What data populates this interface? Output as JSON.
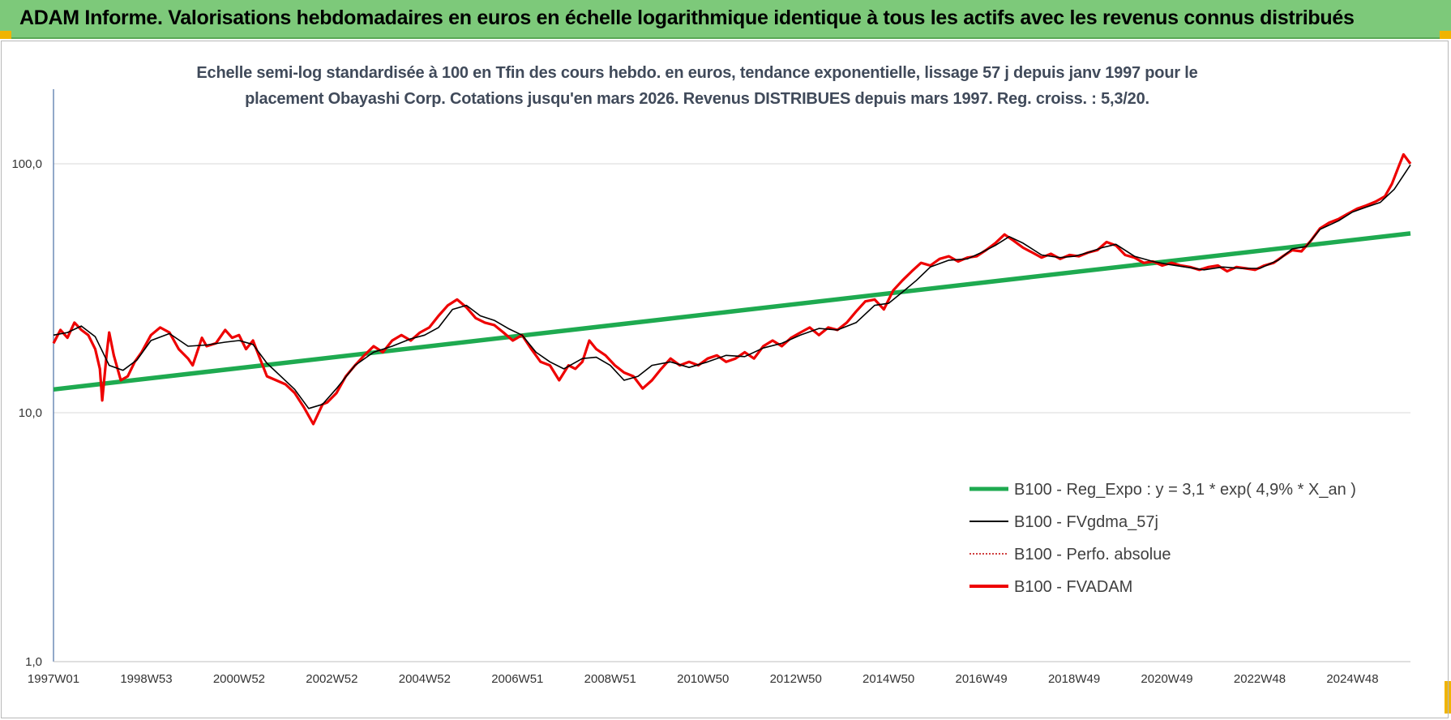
{
  "header": {
    "title": "ADAM Informe. Valorisations hebdomadaires en euros en échelle logarithmique identique à tous les actifs avec les revenus connus distribués"
  },
  "subtitle": {
    "line1": "Echelle semi-log standardisée à 100 en Tfin des cours hebdo. en euros, tendance exponentielle, lissage 57 j depuis janv 1997 pour le",
    "line2": "placement Obayashi Corp. Cotations jusqu'en mars 2026. Revenus DISTRIBUES depuis mars 1997. Reg. croiss. : 5,3/20."
  },
  "colors": {
    "header_bg": "#7dc97a",
    "reg": "#1eaa50",
    "smooth": "#000000",
    "perfo": "#c00000",
    "fvadam": "#ee0000",
    "grid": "#d9d9d9"
  },
  "chart_data": {
    "type": "line",
    "yscale": "log",
    "ylim": [
      1,
      200
    ],
    "y_ticks": [
      {
        "value": 100,
        "label": "100,0"
      },
      {
        "value": 10,
        "label": "10,0"
      },
      {
        "value": 1,
        "label": "1,0"
      }
    ],
    "xlim": [
      1997.0,
      2026.25
    ],
    "x_ticks": [
      {
        "x": 1997.0,
        "label": "1997W01"
      },
      {
        "x": 1999.0,
        "label": "1998W53"
      },
      {
        "x": 2001.0,
        "label": "2000W52"
      },
      {
        "x": 2003.0,
        "label": "2002W52"
      },
      {
        "x": 2005.0,
        "label": "2004W52"
      },
      {
        "x": 2007.0,
        "label": "2006W51"
      },
      {
        "x": 2009.0,
        "label": "2008W51"
      },
      {
        "x": 2011.0,
        "label": "2010W50"
      },
      {
        "x": 2013.0,
        "label": "2012W50"
      },
      {
        "x": 2015.0,
        "label": "2014W50"
      },
      {
        "x": 2017.0,
        "label": "2016W49"
      },
      {
        "x": 2019.0,
        "label": "2018W49"
      },
      {
        "x": 2021.0,
        "label": "2020W49"
      },
      {
        "x": 2023.0,
        "label": "2022W48"
      },
      {
        "x": 2025.0,
        "label": "2024W48"
      }
    ],
    "legend_position": "bottom-right",
    "grid": true,
    "series": [
      {
        "name": "B100 - Reg_Expo : y = 3,1 * exp( 4,9% *  X_an )",
        "x": [
          1997.0,
          2026.25
        ],
        "y": [
          12.4,
          52.5
        ]
      },
      {
        "name": "B100 - FVgdma_57j",
        "x": [
          1997.0,
          1997.3,
          1997.6,
          1997.9,
          1998.2,
          1998.5,
          1998.8,
          1999.1,
          1999.5,
          1999.9,
          2000.3,
          2000.7,
          2001.0,
          2001.3,
          2001.6,
          2001.9,
          2002.2,
          2002.5,
          2002.8,
          2003.1,
          2003.5,
          2003.9,
          2004.3,
          2004.7,
          2005.0,
          2005.3,
          2005.6,
          2005.9,
          2006.2,
          2006.5,
          2006.8,
          2007.1,
          2007.4,
          2007.7,
          2008.0,
          2008.4,
          2008.7,
          2009.0,
          2009.3,
          2009.6,
          2009.9,
          2010.3,
          2010.7,
          2011.1,
          2011.5,
          2011.9,
          2012.3,
          2012.7,
          2013.1,
          2013.5,
          2013.9,
          2014.3,
          2014.7,
          2015.0,
          2015.3,
          2015.6,
          2015.9,
          2016.3,
          2016.7,
          2017.0,
          2017.3,
          2017.6,
          2017.9,
          2018.3,
          2018.7,
          2019.0,
          2019.3,
          2019.6,
          2019.9,
          2020.3,
          2020.7,
          2021.0,
          2021.4,
          2021.8,
          2022.2,
          2022.6,
          2023.0,
          2023.4,
          2023.7,
          2024.0,
          2024.3,
          2024.7,
          2025.0,
          2025.3,
          2025.6,
          2025.9,
          2026.25
        ],
        "y": [
          20.5,
          21.0,
          22.3,
          20.2,
          15.5,
          14.8,
          16.3,
          19.5,
          20.8,
          18.5,
          18.7,
          19.2,
          19.5,
          18.8,
          15.8,
          14.0,
          12.4,
          10.4,
          10.8,
          12.5,
          15.5,
          17.5,
          18.5,
          19.8,
          20.5,
          22.0,
          26.0,
          27.0,
          24.5,
          23.5,
          21.8,
          20.5,
          17.5,
          16.0,
          15.0,
          16.5,
          16.7,
          15.5,
          13.5,
          14.0,
          15.5,
          16.0,
          15.2,
          16.0,
          17.0,
          16.8,
          18.2,
          19.0,
          20.5,
          21.8,
          21.5,
          23.0,
          27.0,
          27.5,
          30.5,
          34.0,
          38.5,
          41.0,
          41.5,
          44.0,
          47.0,
          51.0,
          48.0,
          43.0,
          42.0,
          42.5,
          44.0,
          46.0,
          47.5,
          42.5,
          40.5,
          39.5,
          38.5,
          37.5,
          38.5,
          38.0,
          38.0,
          41.0,
          45.5,
          46.5,
          54.5,
          59.0,
          64.0,
          67.0,
          70.0,
          79.0,
          99.0
        ]
      },
      {
        "name": "B100 - Perfo. absolue",
        "x": [],
        "y": []
      },
      {
        "name": "B100 - FVADAM",
        "x": [
          1997.0,
          1997.15,
          1997.3,
          1997.45,
          1997.6,
          1997.75,
          1997.9,
          1998.0,
          1998.05,
          1998.15,
          1998.2,
          1998.3,
          1998.45,
          1998.6,
          1998.75,
          1998.9,
          1999.1,
          1999.3,
          1999.5,
          1999.7,
          1999.9,
          2000.0,
          2000.2,
          2000.3,
          2000.5,
          2000.7,
          2000.85,
          2001.0,
          2001.15,
          2001.3,
          2001.45,
          2001.6,
          2001.8,
          2002.0,
          2002.2,
          2002.4,
          2002.6,
          2002.8,
          2002.9,
          2003.1,
          2003.3,
          2003.5,
          2003.7,
          2003.9,
          2004.1,
          2004.3,
          2004.5,
          2004.7,
          2004.9,
          2005.1,
          2005.3,
          2005.5,
          2005.7,
          2005.9,
          2006.1,
          2006.3,
          2006.5,
          2006.7,
          2006.9,
          2007.1,
          2007.3,
          2007.5,
          2007.7,
          2007.9,
          2008.1,
          2008.25,
          2008.4,
          2008.55,
          2008.7,
          2008.9,
          2009.1,
          2009.3,
          2009.5,
          2009.7,
          2009.9,
          2010.1,
          2010.3,
          2010.5,
          2010.7,
          2010.9,
          2011.1,
          2011.3,
          2011.5,
          2011.7,
          2011.9,
          2012.1,
          2012.3,
          2012.5,
          2012.7,
          2012.9,
          2013.1,
          2013.3,
          2013.5,
          2013.7,
          2013.9,
          2014.1,
          2014.3,
          2014.5,
          2014.7,
          2014.9,
          2015.1,
          2015.3,
          2015.5,
          2015.7,
          2015.9,
          2016.1,
          2016.3,
          2016.5,
          2016.7,
          2016.9,
          2017.1,
          2017.3,
          2017.5,
          2017.7,
          2017.9,
          2018.1,
          2018.3,
          2018.5,
          2018.7,
          2018.9,
          2019.1,
          2019.3,
          2019.5,
          2019.7,
          2019.9,
          2020.1,
          2020.3,
          2020.5,
          2020.7,
          2020.9,
          2021.1,
          2021.3,
          2021.5,
          2021.7,
          2021.9,
          2022.1,
          2022.3,
          2022.5,
          2022.7,
          2022.9,
          2023.1,
          2023.3,
          2023.5,
          2023.7,
          2023.9,
          2024.1,
          2024.3,
          2024.5,
          2024.7,
          2024.9,
          2025.1,
          2025.3,
          2025.5,
          2025.7,
          2025.85,
          2026.0,
          2026.1,
          2026.25
        ],
        "y": [
          19.0,
          21.5,
          20.0,
          23.0,
          21.5,
          20.5,
          18.0,
          15.0,
          11.2,
          17.5,
          21.0,
          17.0,
          13.5,
          14.0,
          16.0,
          17.5,
          20.5,
          22.0,
          21.0,
          18.0,
          16.5,
          15.5,
          20.0,
          18.5,
          19.0,
          21.5,
          20.0,
          20.5,
          18.0,
          19.5,
          16.5,
          14.0,
          13.5,
          13.0,
          12.0,
          10.5,
          9.0,
          10.8,
          11.0,
          12.0,
          14.0,
          15.5,
          17.0,
          18.5,
          17.5,
          19.5,
          20.5,
          19.5,
          21.0,
          22.0,
          24.5,
          27.0,
          28.5,
          26.5,
          24.0,
          23.0,
          22.5,
          21.0,
          19.5,
          20.5,
          18.0,
          16.0,
          15.5,
          13.5,
          15.5,
          15.0,
          16.0,
          19.5,
          18.0,
          17.0,
          15.5,
          14.5,
          14.0,
          12.5,
          13.5,
          15.0,
          16.5,
          15.5,
          16.0,
          15.5,
          16.5,
          17.0,
          16.0,
          16.5,
          17.5,
          16.5,
          18.5,
          19.5,
          18.5,
          20.0,
          21.0,
          22.0,
          20.5,
          22.0,
          21.5,
          23.0,
          25.5,
          28.0,
          28.5,
          26.0,
          31.0,
          34.0,
          37.0,
          40.0,
          39.0,
          41.5,
          42.5,
          40.5,
          42.0,
          42.5,
          45.0,
          48.0,
          52.0,
          49.0,
          46.0,
          44.0,
          42.0,
          43.5,
          41.5,
          43.0,
          42.5,
          44.0,
          45.0,
          48.5,
          47.0,
          43.0,
          42.0,
          40.0,
          40.5,
          39.0,
          40.0,
          39.0,
          38.5,
          37.5,
          38.5,
          39.0,
          37.0,
          38.5,
          38.0,
          37.5,
          39.0,
          40.0,
          42.5,
          45.0,
          44.5,
          49.0,
          55.0,
          58.0,
          60.0,
          63.0,
          66.0,
          68.0,
          70.5,
          74.0,
          83.0,
          98.0,
          109.0,
          100.0
        ]
      }
    ]
  },
  "legend": [
    {
      "key": "reg",
      "label": "B100 - Reg_Expo : y = 3,1 * exp( 4,9% *  X_an )"
    },
    {
      "key": "smooth",
      "label": "B100 - FVgdma_57j"
    },
    {
      "key": "perfo",
      "label": "B100 - Perfo. absolue"
    },
    {
      "key": "fvadam",
      "label": "B100 - FVADAM"
    }
  ]
}
